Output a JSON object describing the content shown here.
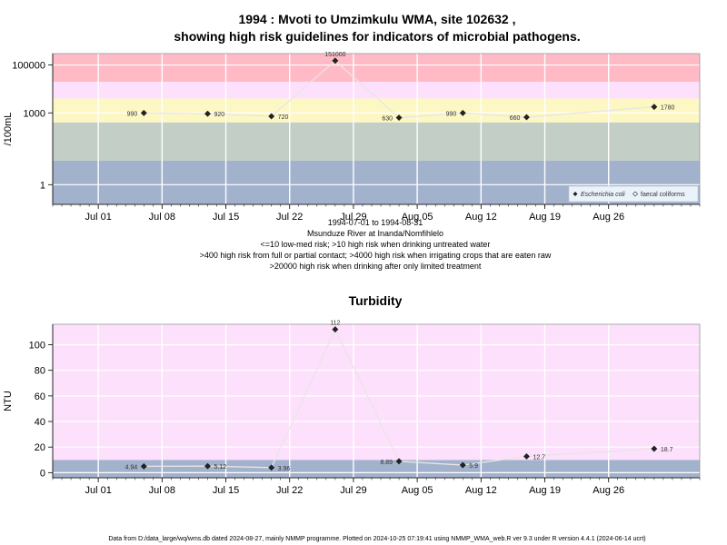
{
  "title_line1": "1994 : Mvoti to Umzimkulu WMA, site 102632 ,",
  "title_line2": "showing high risk guidelines for indicators of microbial pathogens.",
  "date_range": "1994-07-01 to 1994-08-31",
  "site_name": "Msunduze River at Inanda/Nomfihlelo",
  "notes": [
    "<=10 low-med risk; >10 high risk when drinking untreated water",
    ">400 high risk from full or partial contact; >4000 high risk when irrigating crops that are eaten raw",
    ">20000 high risk when drinking after only limited treatment"
  ],
  "footer": "Data from D:/data_large/wq/wms.db dated 2024-08-27, mainly NMMP programme. Plotted on 2024-10-25 07:19:41 using NMMP_WMA_web.R ver 9.3 under R version 4.4.1 (2024-06-14 ucrt)",
  "chart_data": [
    {
      "type": "scatter",
      "ylabel": "/100mL",
      "xlabel": "",
      "y_scale": "log",
      "ylim": [
        0.15,
        300000
      ],
      "xlim": [
        "1994-06-26",
        "1994-09-05"
      ],
      "x_ticks": [
        "Jul 01",
        "Jul 08",
        "Jul 15",
        "Jul 22",
        "Jul 29",
        "Aug 05",
        "Aug 12",
        "Aug 19",
        "Aug 26"
      ],
      "x_tick_dates": [
        "1994-07-01",
        "1994-07-08",
        "1994-07-15",
        "1994-07-22",
        "1994-07-29",
        "1994-08-05",
        "1994-08-12",
        "1994-08-19",
        "1994-08-26"
      ],
      "y_ticks": [
        1,
        1000,
        100000
      ],
      "y_tick_labels": [
        "1",
        "1000",
        "100000"
      ],
      "bands": [
        {
          "from": 0.15,
          "to": 10,
          "color": "#a3b2cc"
        },
        {
          "from": 10,
          "to": 400,
          "color": "#c2cec6"
        },
        {
          "from": 400,
          "to": 4000,
          "color": "#fdf7c3"
        },
        {
          "from": 4000,
          "to": 20000,
          "color": "#fde0fb"
        },
        {
          "from": 20000,
          "to": 300000,
          "color": "#ffbac6"
        }
      ],
      "legend": {
        "position": "bottom-right",
        "entries": [
          "Escherichia coli",
          "faecal coliforms"
        ]
      },
      "series": [
        {
          "name": "Escherichia coli",
          "marker": "filled-diamond",
          "points": [
            {
              "x": "1994-07-06",
              "y": 990,
              "label": "990"
            },
            {
              "x": "1994-07-13",
              "y": 920,
              "label": "920"
            },
            {
              "x": "1994-07-20",
              "y": 720,
              "label": "720"
            },
            {
              "x": "1994-07-27",
              "y": 151000,
              "label": "151000"
            },
            {
              "x": "1994-08-03",
              "y": 630,
              "label": "630"
            },
            {
              "x": "1994-08-10",
              "y": 990,
              "label": "990"
            },
            {
              "x": "1994-08-17",
              "y": 660,
              "label": "660"
            },
            {
              "x": "1994-08-31",
              "y": 1780,
              "label": "1780"
            }
          ]
        }
      ]
    },
    {
      "type": "scatter",
      "title": "Turbidity",
      "ylabel": "NTU",
      "xlabel": "",
      "ylim": [
        -4,
        116
      ],
      "xlim": [
        "1994-06-26",
        "1994-09-05"
      ],
      "x_ticks": [
        "Jul 01",
        "Jul 08",
        "Jul 15",
        "Jul 22",
        "Jul 29",
        "Aug 05",
        "Aug 12",
        "Aug 19",
        "Aug 26"
      ],
      "x_tick_dates": [
        "1994-07-01",
        "1994-07-08",
        "1994-07-15",
        "1994-07-22",
        "1994-07-29",
        "1994-08-05",
        "1994-08-12",
        "1994-08-19",
        "1994-08-26"
      ],
      "y_ticks": [
        0,
        20,
        40,
        60,
        80,
        100
      ],
      "y_tick_labels": [
        "0",
        "20",
        "40",
        "60",
        "80",
        "100"
      ],
      "bands": [
        {
          "from": -4,
          "to": 10,
          "color": "#a3b2cc"
        },
        {
          "from": 10,
          "to": 116,
          "color": "#fde0fb"
        }
      ],
      "series": [
        {
          "name": "Turbidity",
          "marker": "filled-diamond",
          "points": [
            {
              "x": "1994-07-06",
              "y": 4.94,
              "label": "4.94"
            },
            {
              "x": "1994-07-13",
              "y": 5.12,
              "label": "5.12"
            },
            {
              "x": "1994-07-20",
              "y": 3.96,
              "label": "3.96"
            },
            {
              "x": "1994-07-27",
              "y": 112,
              "label": "112"
            },
            {
              "x": "1994-08-03",
              "y": 8.89,
              "label": "8.89"
            },
            {
              "x": "1994-08-10",
              "y": 5.9,
              "label": "5.9"
            },
            {
              "x": "1994-08-17",
              "y": 12.7,
              "label": "12.7"
            },
            {
              "x": "1994-08-31",
              "y": 18.7,
              "label": "18.7"
            }
          ]
        }
      ]
    }
  ]
}
